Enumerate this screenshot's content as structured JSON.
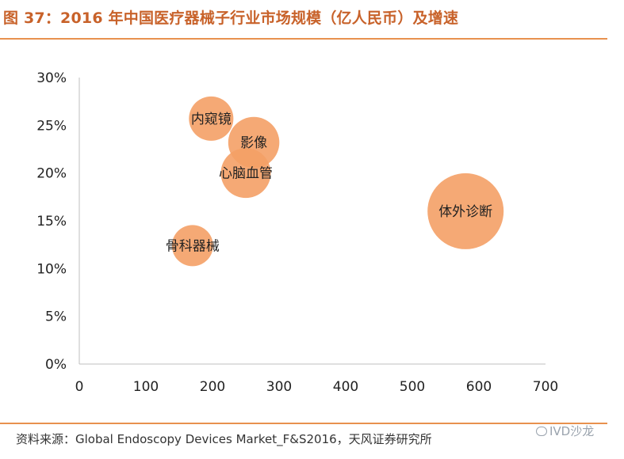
{
  "header": {
    "title": "图 37：2016 年中国医疗器械子行业市场规模（亿人民币）及增速"
  },
  "footer": {
    "source": "资料来源：Global Endoscopy Devices Market_F&S2016，天风证券研究所",
    "watermark": "IVD沙龙"
  },
  "chart_data": {
    "type": "scatter",
    "bubble": true,
    "title": "图 37：2016 年中国医疗器械子行业市场规模（亿人民币）及增速",
    "xlabel": "",
    "ylabel": "",
    "xlim": [
      0,
      700
    ],
    "ylim": [
      0,
      0.3
    ],
    "x_ticks": [
      "0",
      "100",
      "200",
      "300",
      "400",
      "500",
      "600",
      "700"
    ],
    "y_ticks": [
      "0%",
      "5%",
      "10%",
      "15%",
      "20%",
      "25%",
      "30%"
    ],
    "grid": false,
    "color": "#f4a066",
    "points": [
      {
        "label": "内窥镜",
        "x": 198,
        "y": 0.257,
        "size": 198
      },
      {
        "label": "影像",
        "x": 262,
        "y": 0.232,
        "size": 262
      },
      {
        "label": "心脑血管",
        "x": 250,
        "y": 0.2,
        "size": 250
      },
      {
        "label": "体外诊断",
        "x": 580,
        "y": 0.16,
        "size": 580
      },
      {
        "label": "骨科器械",
        "x": 170,
        "y": 0.124,
        "size": 170
      }
    ]
  }
}
